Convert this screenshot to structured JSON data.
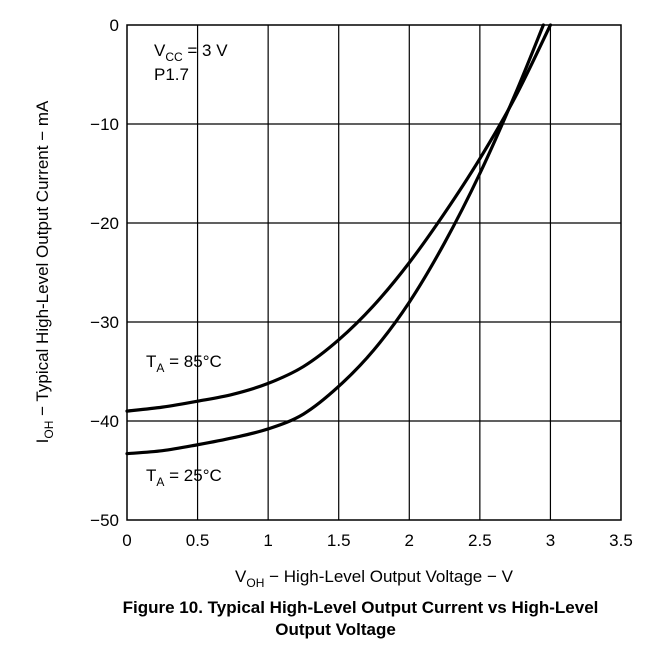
{
  "chart_data": {
    "type": "line",
    "xlim": [
      0,
      3.5
    ],
    "ylim": [
      -50,
      0
    ],
    "xticks": [
      "0",
      "0.5",
      "1",
      "1.5",
      "2",
      "2.5",
      "3",
      "3.5"
    ],
    "yticks": [
      "0",
      "−10",
      "−20",
      "−30",
      "−40",
      "−50"
    ],
    "xtick_values": [
      0,
      0.5,
      1,
      1.5,
      2,
      2.5,
      3,
      3.5
    ],
    "ytick_values": [
      0,
      -10,
      -20,
      -30,
      -40,
      -50
    ],
    "grid": true,
    "xlabel": {
      "main": "V",
      "sub": "OH",
      "rest": " − High-Level Output Voltage − V"
    },
    "ylabel": {
      "main": "I",
      "sub": "OH",
      "rest": " − Typical High-Level Output Current − mA"
    },
    "conditions": {
      "vcc": {
        "main": "V",
        "sub": "CC",
        "rest": " = 3 V"
      },
      "pin": "P1.7"
    },
    "series": [
      {
        "label": {
          "main": "T",
          "sub": "A",
          "rest": " = 85°C"
        },
        "x": [
          0,
          0.25,
          0.5,
          0.75,
          1.0,
          1.25,
          1.5,
          1.75,
          2.0,
          2.25,
          2.5,
          2.75,
          3.0
        ],
        "y": [
          -39,
          -38.6,
          -38.0,
          -37.3,
          -36.2,
          -34.5,
          -31.8,
          -28.3,
          -24.0,
          -19.0,
          -13.5,
          -7.3,
          0
        ]
      },
      {
        "label": {
          "main": "T",
          "sub": "A",
          "rest": " = 25°C"
        },
        "x": [
          0,
          0.25,
          0.5,
          0.75,
          1.0,
          1.25,
          1.5,
          1.75,
          2.0,
          2.25,
          2.5,
          2.75,
          2.95
        ],
        "y": [
          -43.3,
          -43.0,
          -42.4,
          -41.7,
          -40.8,
          -39.3,
          -36.5,
          -32.8,
          -28.0,
          -22.0,
          -15.0,
          -7.0,
          0
        ]
      }
    ]
  },
  "figure_caption": {
    "line1": "Figure 10. Typical High-Level Output Current vs High-Level",
    "line2": "Output Voltage"
  }
}
